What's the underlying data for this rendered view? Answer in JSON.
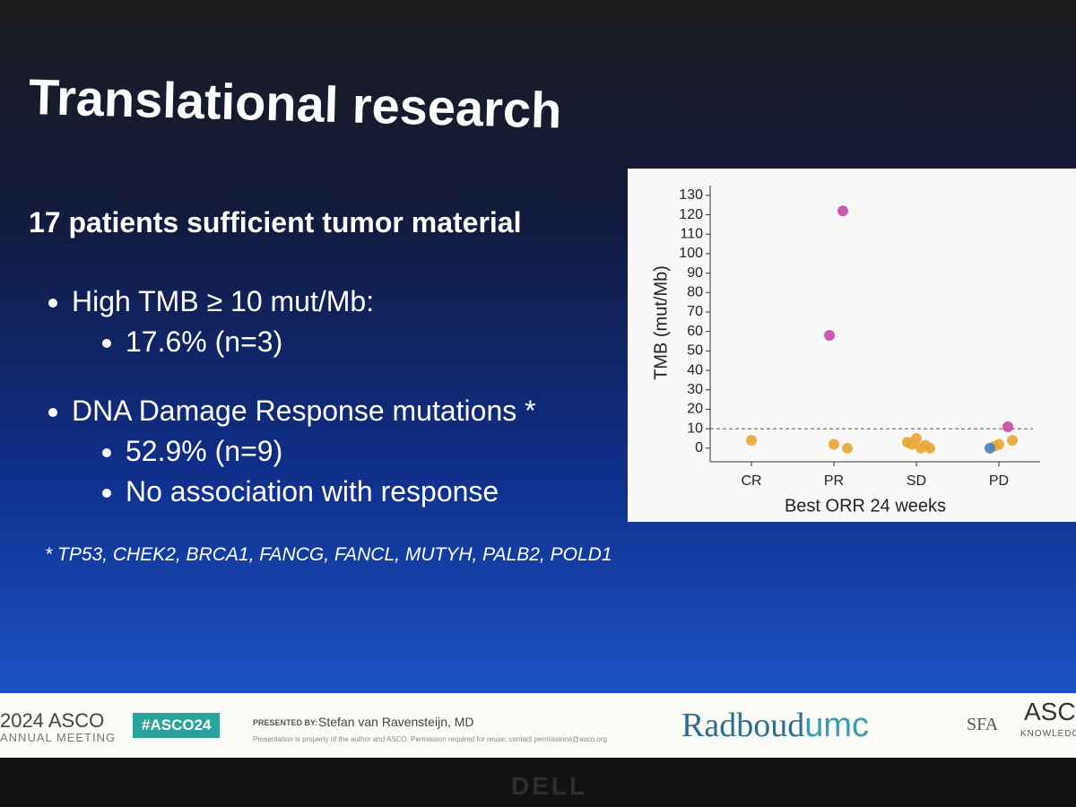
{
  "slide": {
    "title": "Translational research",
    "heading": "17 patients sufficient tumor material",
    "bullets": [
      {
        "text": "High TMB ≥ 10 mut/Mb:",
        "sub": [
          "17.6% (n=3)"
        ]
      },
      {
        "text": "DNA Damage Response mutations *",
        "sub": [
          "52.9% (n=9)",
          "No association with response"
        ]
      }
    ],
    "footnote": "* TP53, CHEK2, BRCA1, FANCG, FANCL, MUTYH, PALB2, POLD1"
  },
  "footer": {
    "year_brand": "2024 ASCO",
    "meeting": "ANNUAL MEETING",
    "hashtag": "#ASCO24",
    "presented_by": "PRESENTED BY:",
    "presenter": "Stefan van Ravensteijn, MD",
    "notice": "Presentation is property of the author and ASCO. Permission required for reuse; contact permissions@asco.org",
    "logo_left": "Radboud",
    "logo_right": "umc",
    "sfa": "SFA",
    "asco": "ASCO",
    "knowledge": "KNOWLEDGE"
  },
  "bezel": {
    "brand": "DELL"
  },
  "chart_data": {
    "type": "scatter",
    "x_label": "Best ORR 24 weeks",
    "y_label": "TMB (mut/Mb)",
    "categories": [
      "CR",
      "PR",
      "SD",
      "PD"
    ],
    "ylim": [
      -7,
      135
    ],
    "yticks": [
      0,
      10,
      20,
      30,
      40,
      50,
      60,
      70,
      80,
      90,
      100,
      110,
      120,
      130
    ],
    "reference_line": 10,
    "series": [
      {
        "color": "#e5a636",
        "x": [
          "CR",
          "PR",
          "PR",
          "SD",
          "SD",
          "SD",
          "SD",
          "SD",
          "SD",
          "PD",
          "PD",
          "PD"
        ],
        "values": [
          4,
          2,
          0,
          5,
          0,
          2,
          1.5,
          3,
          0,
          2,
          4,
          1
        ]
      },
      {
        "color": "#c548a6",
        "x": [
          "PR",
          "PR",
          "PD"
        ],
        "values": [
          58,
          122,
          11
        ]
      },
      {
        "color": "#3f82c6",
        "x": [
          "PD"
        ],
        "values": [
          0
        ]
      }
    ]
  }
}
